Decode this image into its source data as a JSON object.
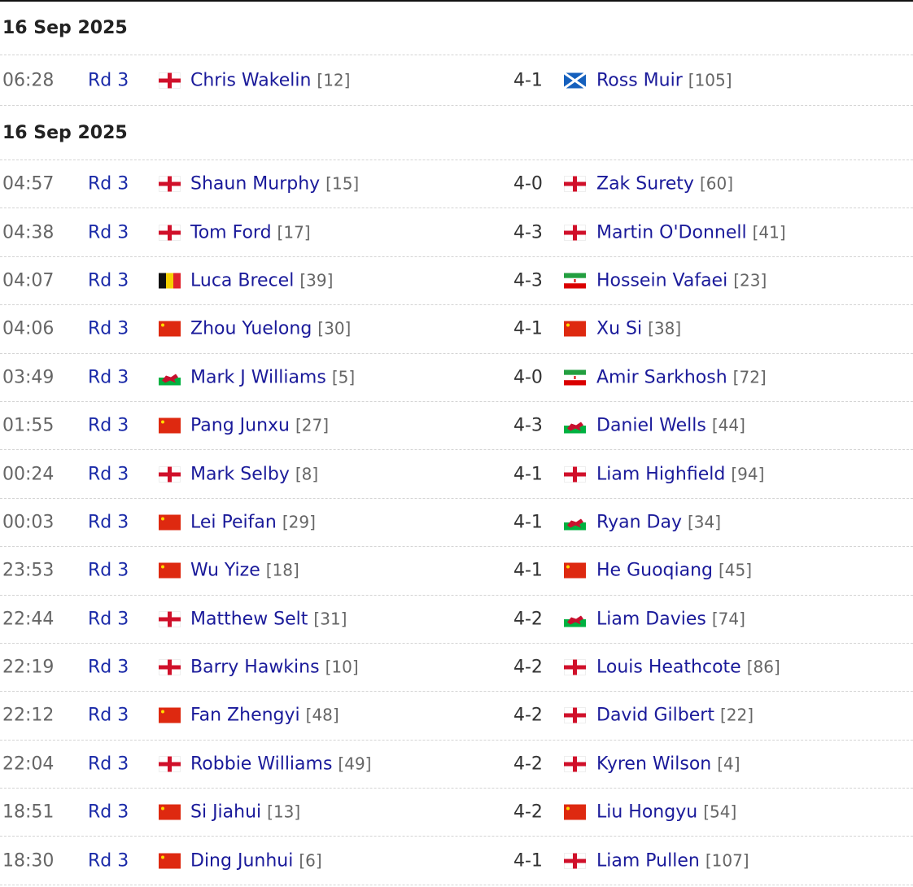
{
  "groups": [
    {
      "date": "16 Sep 2025",
      "matches": [
        {
          "time": "06:28",
          "round": "Rd 3",
          "p1": {
            "name": "Chris Wakelin",
            "seed": "[12]",
            "flag": "england"
          },
          "score": "4-1",
          "p2": {
            "name": "Ross Muir",
            "seed": "[105]",
            "flag": "scotland"
          }
        }
      ]
    },
    {
      "date": "16 Sep 2025",
      "matches": [
        {
          "time": "04:57",
          "round": "Rd 3",
          "p1": {
            "name": "Shaun Murphy",
            "seed": "[15]",
            "flag": "england"
          },
          "score": "4-0",
          "p2": {
            "name": "Zak Surety",
            "seed": "[60]",
            "flag": "england"
          }
        },
        {
          "time": "04:38",
          "round": "Rd 3",
          "p1": {
            "name": "Tom Ford",
            "seed": "[17]",
            "flag": "england"
          },
          "score": "4-3",
          "p2": {
            "name": "Martin O'Donnell",
            "seed": "[41]",
            "flag": "england"
          }
        },
        {
          "time": "04:07",
          "round": "Rd 3",
          "p1": {
            "name": "Luca Brecel",
            "seed": "[39]",
            "flag": "belgium"
          },
          "score": "4-3",
          "p2": {
            "name": "Hossein Vafaei",
            "seed": "[23]",
            "flag": "iran"
          }
        },
        {
          "time": "04:06",
          "round": "Rd 3",
          "p1": {
            "name": "Zhou Yuelong",
            "seed": "[30]",
            "flag": "china"
          },
          "score": "4-1",
          "p2": {
            "name": "Xu Si",
            "seed": "[38]",
            "flag": "china"
          }
        },
        {
          "time": "03:49",
          "round": "Rd 3",
          "p1": {
            "name": "Mark J Williams",
            "seed": "[5]",
            "flag": "wales"
          },
          "score": "4-0",
          "p2": {
            "name": "Amir Sarkhosh",
            "seed": "[72]",
            "flag": "iran"
          }
        },
        {
          "time": "01:55",
          "round": "Rd 3",
          "p1": {
            "name": "Pang Junxu",
            "seed": "[27]",
            "flag": "china"
          },
          "score": "4-3",
          "p2": {
            "name": "Daniel Wells",
            "seed": "[44]",
            "flag": "wales"
          }
        },
        {
          "time": "00:24",
          "round": "Rd 3",
          "p1": {
            "name": "Mark Selby",
            "seed": "[8]",
            "flag": "england"
          },
          "score": "4-1",
          "p2": {
            "name": "Liam Highfield",
            "seed": "[94]",
            "flag": "england"
          }
        },
        {
          "time": "00:03",
          "round": "Rd 3",
          "p1": {
            "name": "Lei Peifan",
            "seed": "[29]",
            "flag": "china"
          },
          "score": "4-1",
          "p2": {
            "name": "Ryan Day",
            "seed": "[34]",
            "flag": "wales"
          }
        },
        {
          "time": "23:53",
          "round": "Rd 3",
          "p1": {
            "name": "Wu Yize",
            "seed": "[18]",
            "flag": "china"
          },
          "score": "4-1",
          "p2": {
            "name": "He Guoqiang",
            "seed": "[45]",
            "flag": "china"
          }
        },
        {
          "time": "22:44",
          "round": "Rd 3",
          "p1": {
            "name": "Matthew Selt",
            "seed": "[31]",
            "flag": "england"
          },
          "score": "4-2",
          "p2": {
            "name": "Liam Davies",
            "seed": "[74]",
            "flag": "wales"
          }
        },
        {
          "time": "22:19",
          "round": "Rd 3",
          "p1": {
            "name": "Barry Hawkins",
            "seed": "[10]",
            "flag": "england"
          },
          "score": "4-2",
          "p2": {
            "name": "Louis Heathcote",
            "seed": "[86]",
            "flag": "england"
          }
        },
        {
          "time": "22:12",
          "round": "Rd 3",
          "p1": {
            "name": "Fan Zhengyi",
            "seed": "[48]",
            "flag": "china"
          },
          "score": "4-2",
          "p2": {
            "name": "David Gilbert",
            "seed": "[22]",
            "flag": "england"
          }
        },
        {
          "time": "22:04",
          "round": "Rd 3",
          "p1": {
            "name": "Robbie Williams",
            "seed": "[49]",
            "flag": "england"
          },
          "score": "4-2",
          "p2": {
            "name": "Kyren Wilson",
            "seed": "[4]",
            "flag": "england"
          }
        },
        {
          "time": "18:51",
          "round": "Rd 3",
          "p1": {
            "name": "Si Jiahui",
            "seed": "[13]",
            "flag": "china"
          },
          "score": "4-2",
          "p2": {
            "name": "Liu Hongyu",
            "seed": "[54]",
            "flag": "china"
          }
        },
        {
          "time": "18:30",
          "round": "Rd 3",
          "p1": {
            "name": "Ding Junhui",
            "seed": "[6]",
            "flag": "china"
          },
          "score": "4-1",
          "p2": {
            "name": "Liam Pullen",
            "seed": "[107]",
            "flag": "england"
          }
        }
      ]
    }
  ]
}
